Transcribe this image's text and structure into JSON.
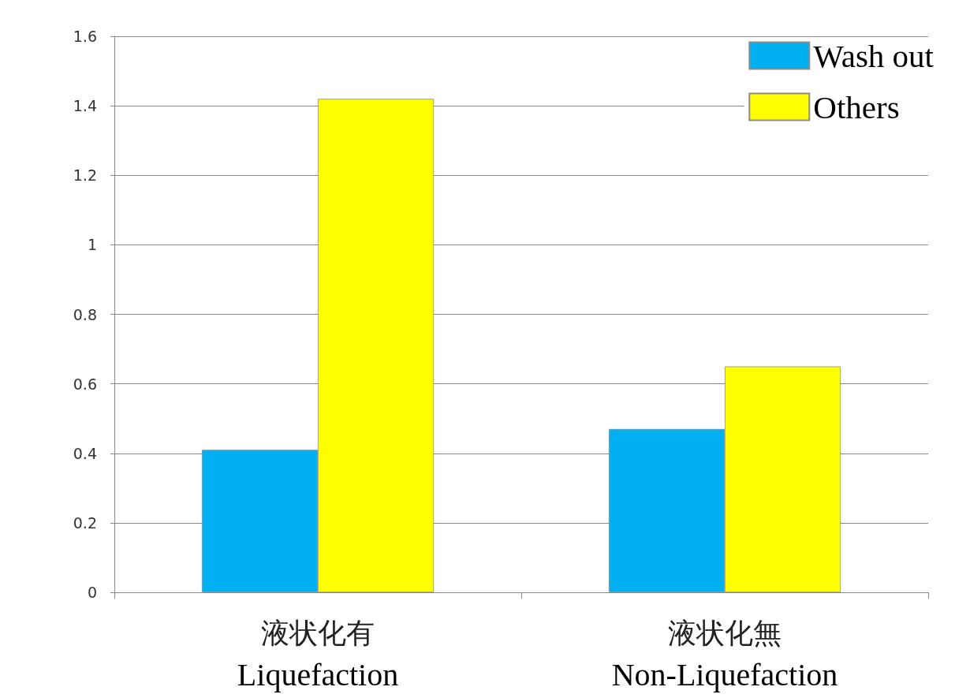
{
  "chart_data": {
    "type": "bar",
    "categories": [
      "液状化有\nLiquefaction",
      "液状化無\nNon-Liquefaction"
    ],
    "series": [
      {
        "name": "Wash out",
        "color": "#00b0f0",
        "values": [
          0.41,
          0.47
        ]
      },
      {
        "name": "Others",
        "color": "#ffff00",
        "values": [
          1.42,
          0.65
        ]
      }
    ],
    "ylim": [
      0,
      1.6
    ],
    "yticks": [
      0,
      0.2,
      0.4,
      0.6,
      0.8,
      1,
      1.2,
      1.4,
      1.6
    ],
    "grid": "y",
    "legend": "top right"
  }
}
